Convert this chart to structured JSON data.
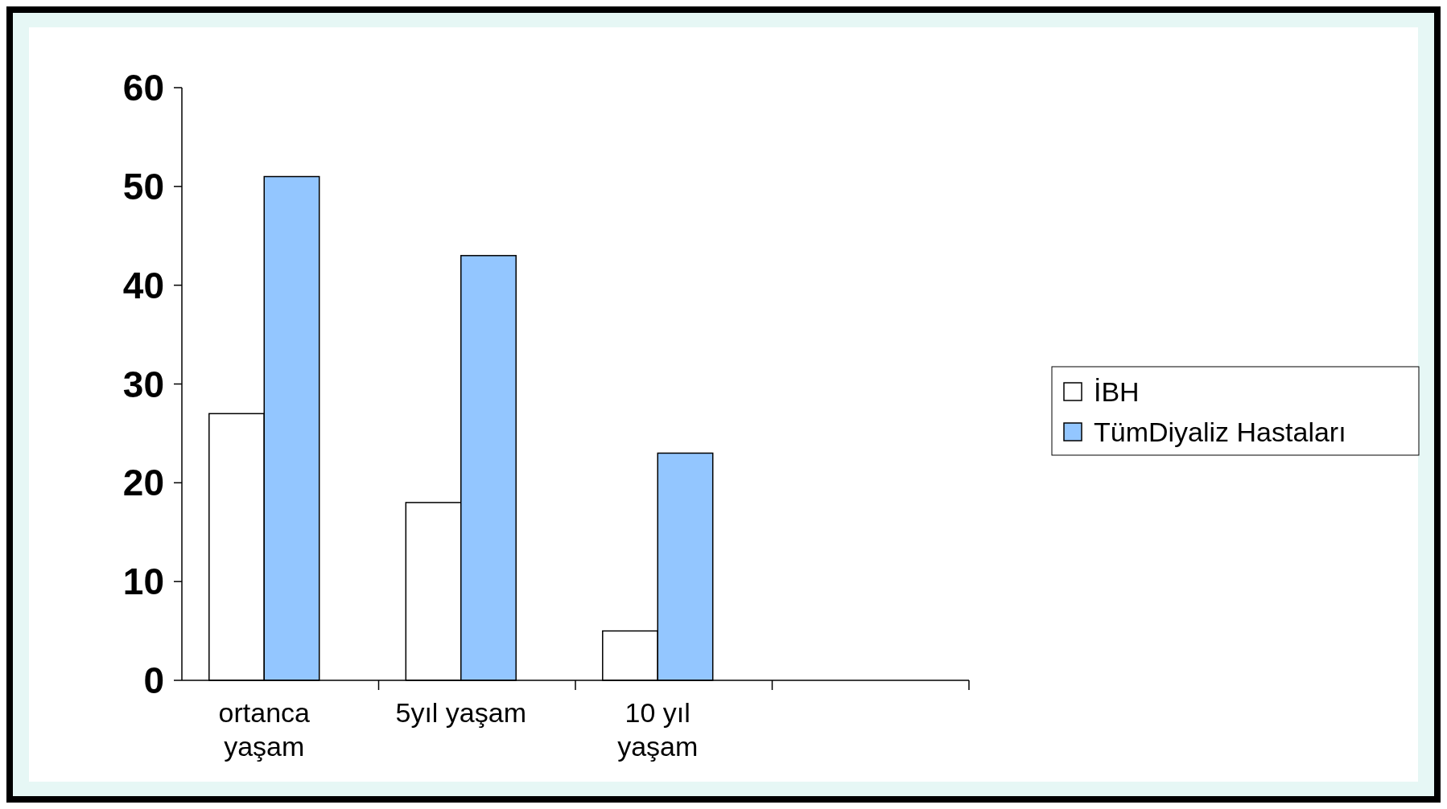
{
  "chart_data": {
    "type": "bar",
    "categories": [
      "ortanca yaşam",
      "5yıl yaşam",
      "10 yıl yaşam",
      null
    ],
    "series": [
      {
        "name": "İBH",
        "color": "#ffffff",
        "values": [
          27,
          18,
          5,
          null
        ]
      },
      {
        "name": "TümDiyaliz Hastaları",
        "color": "#93c6ff",
        "values": [
          51,
          43,
          23,
          null
        ]
      }
    ],
    "ylim": [
      0,
      60
    ],
    "yticks": [
      0,
      10,
      20,
      30,
      40,
      50,
      60
    ],
    "grid": false,
    "legend": "right"
  }
}
